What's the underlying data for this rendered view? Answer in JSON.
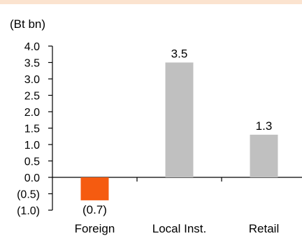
{
  "chart_data": {
    "type": "bar",
    "unit_label": "(Bt bn)",
    "categories": [
      "Foreign",
      "Local Inst.",
      "Retail"
    ],
    "values": [
      -0.7,
      3.5,
      1.3
    ],
    "data_labels": [
      "(0.7)",
      "3.5",
      "1.3"
    ],
    "bar_colors": [
      "#f55b10",
      "#c0c0c0",
      "#c0c0c0"
    ],
    "ylim": [
      -1.0,
      4.0
    ],
    "yticks": [
      4.0,
      3.5,
      3.0,
      2.5,
      2.0,
      1.5,
      1.0,
      0.5,
      0.0,
      -0.5,
      -1.0
    ],
    "ytick_labels": [
      "4.0",
      "3.5",
      "3.0",
      "2.5",
      "2.0",
      "1.5",
      "1.0",
      "0.5",
      "0.0",
      "(0.5)",
      "(1.0)"
    ],
    "grid": false,
    "legend": "none"
  }
}
